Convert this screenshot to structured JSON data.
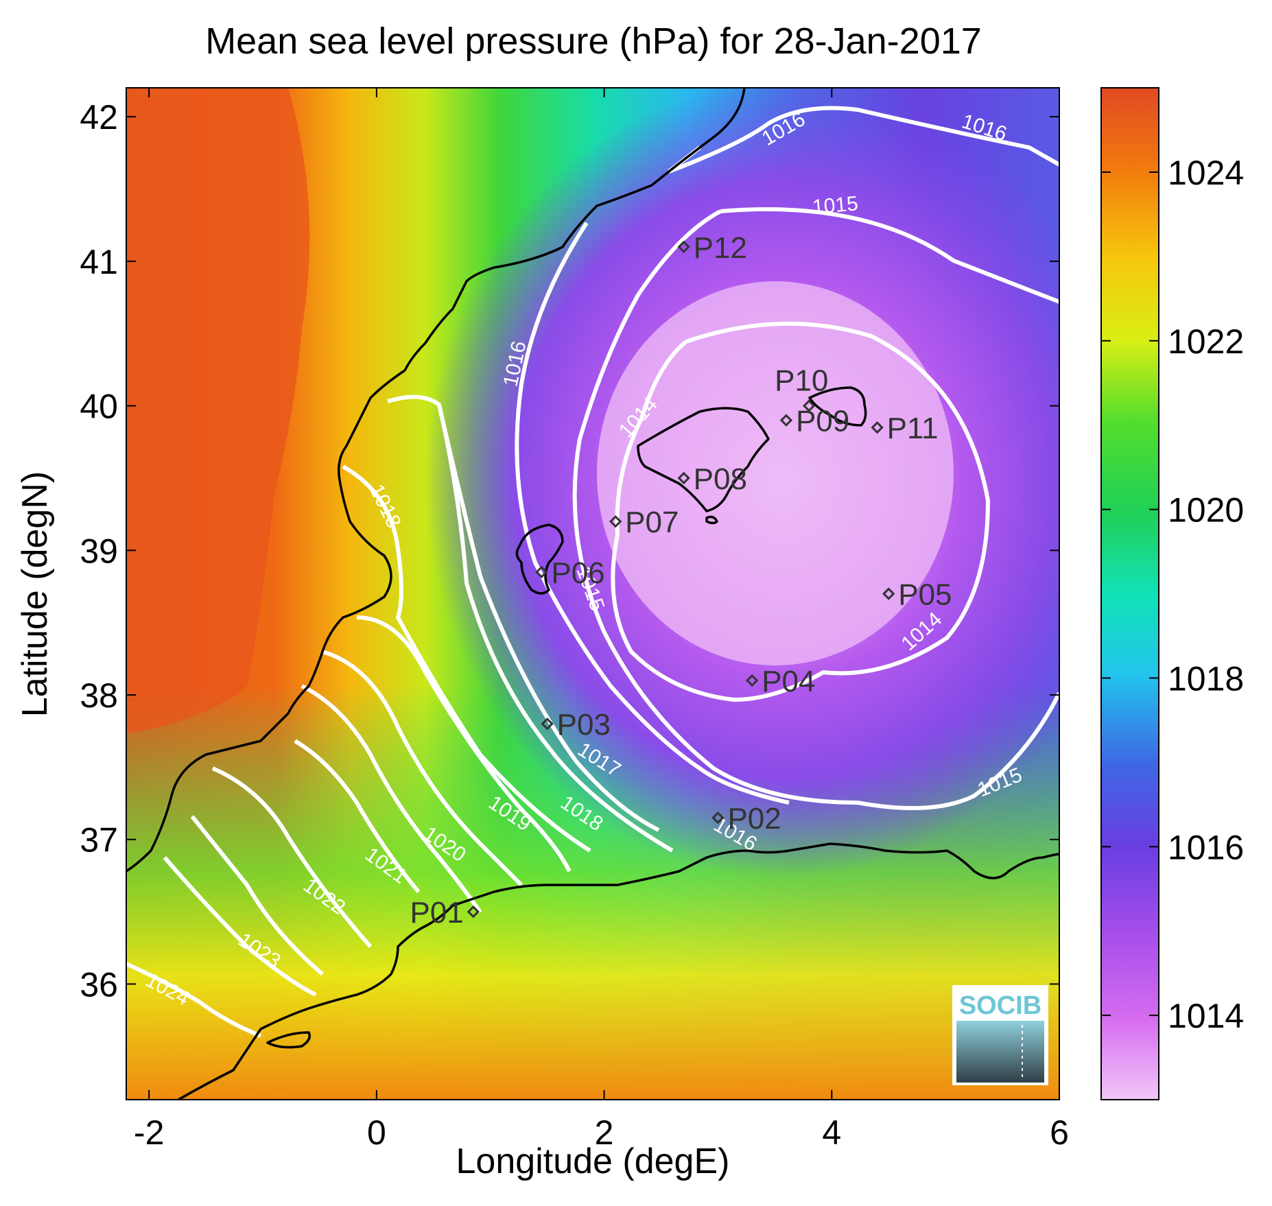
{
  "title": "Mean sea level pressure (hPa) for 28-Jan-2017",
  "xlabel": "Longitude (degE)",
  "ylabel": "Latitude (degN)",
  "xticks": [
    "-2",
    "0",
    "2",
    "4",
    "6"
  ],
  "yticks": [
    "42",
    "41",
    "40",
    "39",
    "38",
    "37",
    "36"
  ],
  "colorbar": {
    "ticks": [
      "1024",
      "1022",
      "1020",
      "1018",
      "1016",
      "1014"
    ],
    "range": [
      1013,
      1025
    ]
  },
  "contour_labels": [
    "1016",
    "1016",
    "1015",
    "1016",
    "1014",
    "1018",
    "1015",
    "1014",
    "1017",
    "1018",
    "1019",
    "1020",
    "1021",
    "1022",
    "1023",
    "1024",
    "1016",
    "1015"
  ],
  "points": [
    {
      "id": "P01",
      "lon": 0.85,
      "lat": 36.5
    },
    {
      "id": "P02",
      "lon": 3.0,
      "lat": 37.15
    },
    {
      "id": "P03",
      "lon": 1.5,
      "lat": 37.8
    },
    {
      "id": "P04",
      "lon": 3.3,
      "lat": 38.1
    },
    {
      "id": "P05",
      "lon": 4.5,
      "lat": 38.7
    },
    {
      "id": "P06",
      "lon": 1.45,
      "lat": 38.85
    },
    {
      "id": "P07",
      "lon": 2.1,
      "lat": 39.2
    },
    {
      "id": "P08",
      "lon": 2.7,
      "lat": 39.5
    },
    {
      "id": "P09",
      "lon": 3.6,
      "lat": 39.9
    },
    {
      "id": "P10",
      "lon": 3.8,
      "lat": 40.0
    },
    {
      "id": "P11",
      "lon": 4.4,
      "lat": 39.85
    },
    {
      "id": "P12",
      "lon": 2.7,
      "lat": 41.1
    }
  ],
  "logo": {
    "text": "SOCIB"
  },
  "chart_data": {
    "type": "heatmap",
    "title": "Mean sea level pressure (hPa) for 28-Jan-2017",
    "xlabel": "Longitude (degE)",
    "ylabel": "Latitude (degN)",
    "xlim": [
      -2.2,
      6
    ],
    "ylim": [
      35.2,
      42.2
    ],
    "clim": [
      1013,
      1025
    ],
    "colorbar_ticks": [
      1014,
      1016,
      1018,
      1020,
      1022,
      1024
    ],
    "low_pressure_center": {
      "lon": 3.7,
      "lat": 39.4,
      "value": 1013.5
    },
    "contour_levels": [
      1014,
      1015,
      1016,
      1017,
      1018,
      1019,
      1020,
      1021,
      1022,
      1023,
      1024
    ],
    "stations": [
      "P01",
      "P02",
      "P03",
      "P04",
      "P05",
      "P06",
      "P07",
      "P08",
      "P09",
      "P10",
      "P11",
      "P12"
    ]
  }
}
